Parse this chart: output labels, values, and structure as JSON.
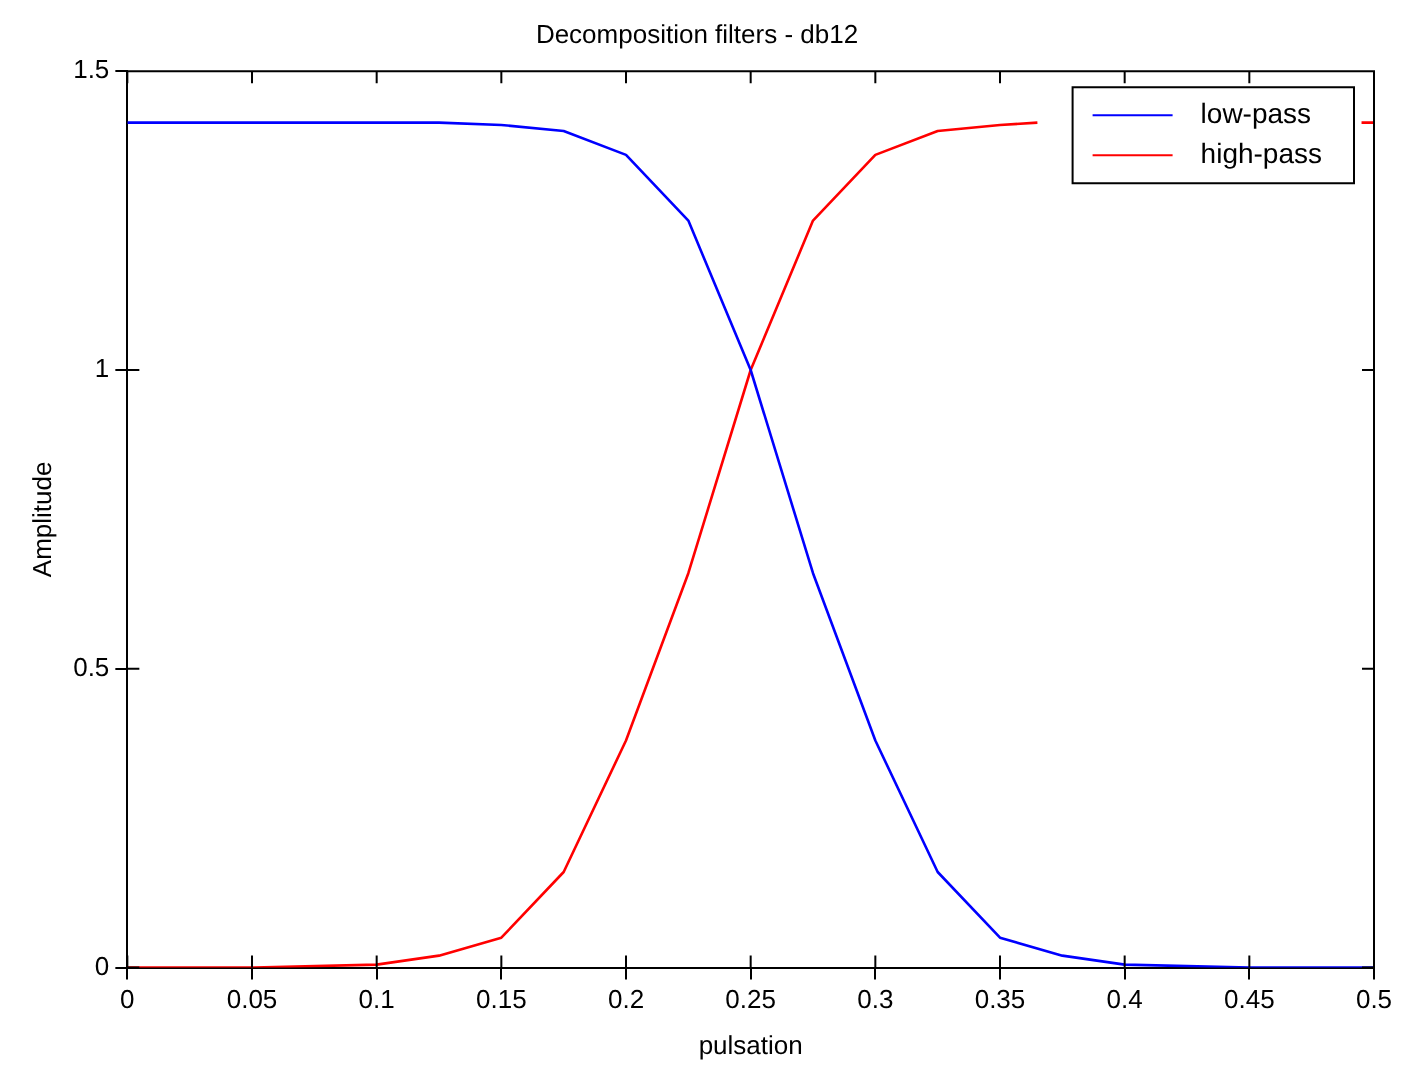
{
  "chart_data": {
    "type": "line",
    "title": "Decomposition filters - db12",
    "xlabel": "pulsation",
    "ylabel": "Amplitude",
    "x": [
      0,
      0.05,
      0.1,
      0.125,
      0.15,
      0.175,
      0.2,
      0.225,
      0.25,
      0.275,
      0.3,
      0.325,
      0.35,
      0.375,
      0.4,
      0.45,
      0.5
    ],
    "series": [
      {
        "name": "low-pass",
        "color": "#0000ff",
        "values": [
          1.414,
          1.414,
          1.414,
          1.414,
          1.41,
          1.4,
          1.36,
          1.25,
          1.0,
          0.66,
          0.38,
          0.16,
          0.05,
          0.02,
          0.005,
          0,
          0
        ]
      },
      {
        "name": "high-pass",
        "color": "#ff0000",
        "x": [
          0,
          0.05,
          0.1,
          0.125,
          0.15,
          0.175,
          0.2,
          0.225,
          0.25,
          0.275,
          0.3,
          0.325,
          0.35,
          0.365,
          0.43,
          0.495,
          0.5
        ],
        "values": [
          0,
          0,
          0.005,
          0.02,
          0.05,
          0.16,
          0.38,
          0.66,
          1.0,
          1.25,
          1.36,
          1.4,
          1.41,
          1.414,
          null,
          1.414,
          1.414
        ]
      }
    ],
    "xlim": [
      0,
      0.5
    ],
    "xticks": [
      0,
      0.05,
      0.1,
      0.15,
      0.2,
      0.25,
      0.3,
      0.35,
      0.4,
      0.45,
      0.5
    ],
    "ylim": [
      0,
      1.5
    ],
    "yticks": [
      0,
      0.5,
      1,
      1.5
    ],
    "grid": false,
    "legend": "top right",
    "marker": "none",
    "line_style": "solid"
  }
}
